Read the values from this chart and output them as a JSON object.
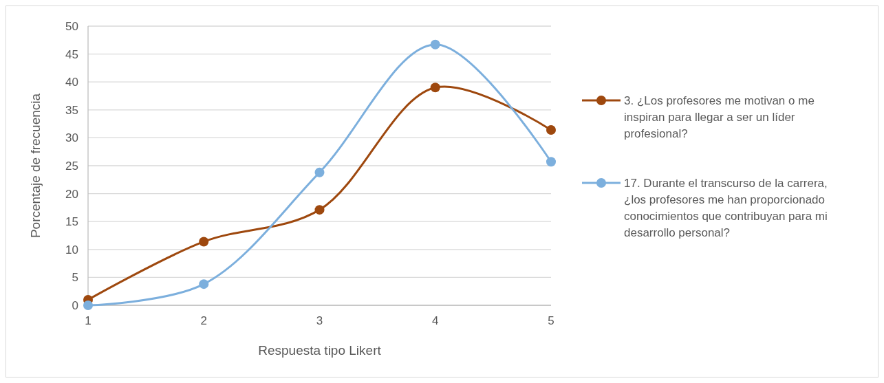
{
  "chart_data": {
    "type": "line",
    "xlabel": "Respuesta tipo Likert",
    "ylabel": "Porcentaje de frecuencia",
    "x": [
      1,
      2,
      3,
      4,
      5
    ],
    "xlim": [
      1,
      5
    ],
    "xticks": [
      1,
      2,
      3,
      4,
      5
    ],
    "ylim": [
      0,
      50
    ],
    "yticks": [
      0,
      5,
      10,
      15,
      20,
      25,
      30,
      35,
      40,
      45,
      50
    ],
    "grid": "y",
    "legend": "right",
    "marker": "circle",
    "line_style": "solid",
    "series": [
      {
        "name": "3.  ¿Los profesores me motivan o me inspiran para llegar a ser un líder profesional?",
        "color": "#9e480e",
        "values": [
          1,
          11.4,
          17.1,
          39,
          31.4
        ]
      },
      {
        "name": "17.  Durante el transcurso de la carrera, ¿los profesores me han proporcionado conocimientos que contribuyan para mi desarrollo personal?",
        "color": "#7cafdd",
        "values": [
          0,
          3.8,
          23.8,
          46.7,
          25.7
        ]
      }
    ]
  }
}
